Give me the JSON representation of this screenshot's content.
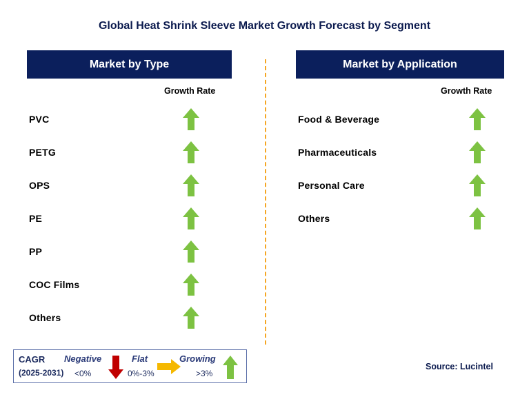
{
  "title": "Global Heat Shrink Sleeve Market Growth Forecast by Segment",
  "left_panel": {
    "header": "Market by Type",
    "column_header": "Growth Rate",
    "rows": [
      {
        "label": "PVC",
        "trend": "growing"
      },
      {
        "label": "PETG",
        "trend": "growing"
      },
      {
        "label": "OPS",
        "trend": "growing"
      },
      {
        "label": "PE",
        "trend": "growing"
      },
      {
        "label": "PP",
        "trend": "growing"
      },
      {
        "label": "COC Films",
        "trend": "growing"
      },
      {
        "label": "Others",
        "trend": "growing"
      }
    ]
  },
  "right_panel": {
    "header": "Market by Application",
    "column_header": "Growth Rate",
    "rows": [
      {
        "label": "Food & Beverage",
        "trend": "growing"
      },
      {
        "label": "Pharmaceuticals",
        "trend": "growing"
      },
      {
        "label": "Personal Care",
        "trend": "growing"
      },
      {
        "label": "Others",
        "trend": "growing"
      }
    ]
  },
  "legend": {
    "cagr_label": "CAGR",
    "period": "(2025-2031)",
    "negative_label": "Negative",
    "negative_range": "<0%",
    "flat_label": "Flat",
    "flat_range": "0%-3%",
    "growing_label": "Growing",
    "growing_range": ">3%"
  },
  "source": "Source: Lucintel",
  "colors": {
    "header_bg": "#0b1f5c",
    "growing_arrow": "#7dc242",
    "negative_arrow": "#c00000",
    "flat_arrow": "#f5b800",
    "divider": "#f5a623"
  }
}
